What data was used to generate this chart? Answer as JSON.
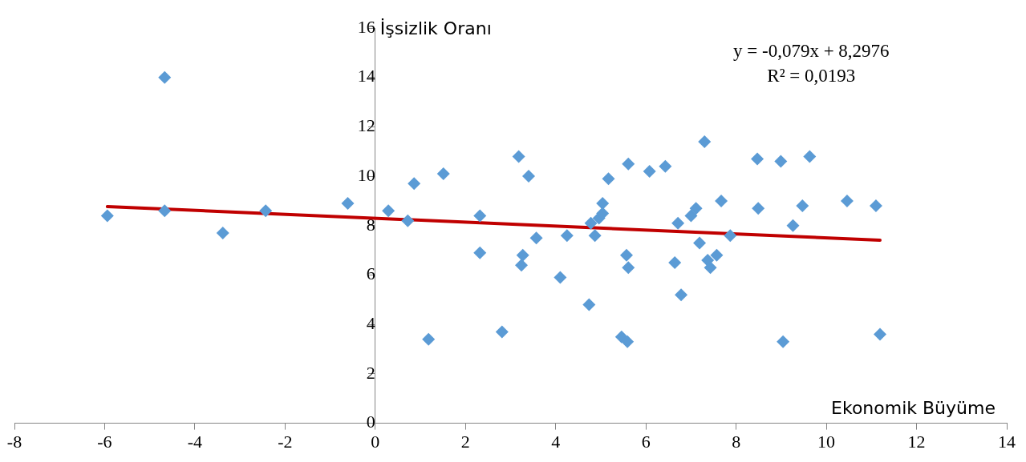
{
  "chart_data": {
    "type": "scatter",
    "xlabel": "Ekonomik Büyüme",
    "ylabel": "İşsizlik Oranı",
    "annotations": [
      "y = -0,079x + 8,2976",
      "R² = 0,0193"
    ],
    "xlim": [
      -8,
      14
    ],
    "xticks": [
      -8,
      -6,
      -4,
      -2,
      0,
      2,
      4,
      6,
      8,
      10,
      12,
      14
    ],
    "ylim": [
      0,
      16
    ],
    "yticks": [
      0,
      2,
      4,
      6,
      8,
      10,
      12,
      14,
      16
    ],
    "grid": false,
    "legend": false,
    "marker": "diamond",
    "series": [
      {
        "color": "#5b9bd5",
        "x": [
          -5.94,
          -4.67,
          -4.67,
          -3.38,
          -2.43,
          -0.61,
          0.29,
          0.72,
          0.86,
          1.18,
          1.51,
          2.32,
          2.32,
          2.81,
          3.18,
          3.24,
          3.27,
          3.4,
          3.57,
          4.1,
          4.25,
          4.74,
          4.78,
          4.87,
          4.96,
          5.04,
          5.04,
          5.17,
          5.46,
          5.57,
          5.59,
          5.61,
          5.61,
          6.08,
          6.43,
          6.64,
          6.71,
          6.78,
          7.0,
          7.11,
          7.19,
          7.3,
          7.37,
          7.43,
          7.57,
          7.67,
          7.87,
          8.47,
          8.49,
          8.99,
          9.04,
          9.26,
          9.47,
          9.63,
          10.46,
          11.1,
          11.19
        ],
        "values": [
          8.4,
          14.0,
          8.6,
          7.7,
          8.6,
          8.9,
          8.6,
          8.2,
          9.7,
          3.4,
          10.1,
          6.9,
          8.4,
          3.7,
          10.8,
          6.4,
          6.8,
          10.0,
          7.5,
          5.9,
          7.6,
          4.8,
          8.1,
          7.6,
          8.3,
          8.9,
          8.5,
          9.9,
          3.5,
          6.8,
          3.3,
          10.5,
          6.3,
          10.2,
          10.4,
          6.5,
          8.1,
          5.2,
          8.4,
          8.7,
          7.3,
          11.4,
          6.6,
          6.3,
          6.8,
          9.0,
          7.6,
          10.7,
          8.7,
          10.6,
          3.3,
          8.0,
          8.8,
          10.8,
          9.0,
          8.8,
          3.6
        ]
      },
      {
        "type": "line",
        "color": "#c00000",
        "marker": "none",
        "x": [
          -5.94,
          11.19
        ],
        "values": [
          8.77,
          7.41
        ]
      }
    ]
  }
}
